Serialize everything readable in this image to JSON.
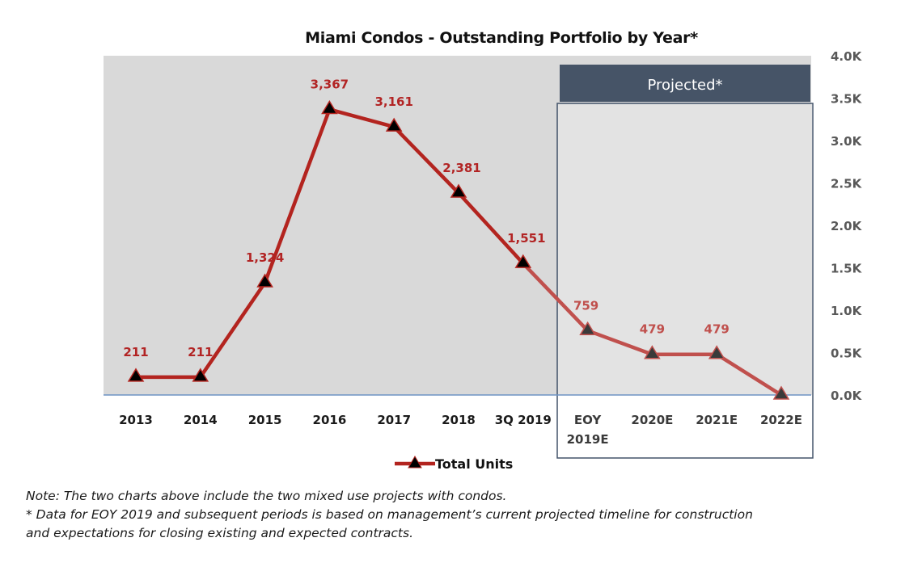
{
  "chart_data": {
    "type": "line",
    "title": "Miami Condos - Outstanding Portfolio by Year*",
    "xlabel": "",
    "ylabel": "",
    "categories": [
      "2013",
      "2014",
      "2015",
      "2016",
      "2017",
      "2018",
      "3Q 2019",
      "EOY 2019E",
      "2020E",
      "2021E",
      "2022E"
    ],
    "category_lines": [
      [
        "2013"
      ],
      [
        "2014"
      ],
      [
        "2015"
      ],
      [
        "2016"
      ],
      [
        "2017"
      ],
      [
        "2018"
      ],
      [
        "3Q 2019"
      ],
      [
        "EOY",
        "2019E"
      ],
      [
        "2020E"
      ],
      [
        "2021E"
      ],
      [
        "2022E"
      ]
    ],
    "series": [
      {
        "name": "Total Units",
        "values": [
          211,
          211,
          1324,
          3367,
          3161,
          2381,
          1551,
          759,
          479,
          479,
          0
        ],
        "data_labels": [
          "211",
          "211",
          "1,324",
          "3,367",
          "3,161",
          "2,381",
          "1,551",
          "759",
          "479",
          "479",
          ""
        ],
        "color": "#b3241f",
        "marker": "triangle"
      }
    ],
    "ylim": [
      0,
      4000
    ],
    "y_ticks": [
      0,
      500,
      1000,
      1500,
      2000,
      2500,
      3000,
      3500,
      4000
    ],
    "y_tick_labels": [
      "0.0K",
      "0.5K",
      "1.0K",
      "1.5K",
      "2.0K",
      "2.5K",
      "3.0K",
      "3.5K",
      "4.0K"
    ],
    "y_axis_side": "right",
    "grid": false,
    "legend": {
      "position": "bottom",
      "entries": [
        "Total Units"
      ]
    },
    "projected_region": {
      "label": "Projected*",
      "from_category": "EOY 2019E",
      "to_category": "2022E"
    }
  },
  "colors": {
    "plot_background": "#d9d9d9",
    "projected_background": "#e3e3e3",
    "projected_header": "#465467",
    "projected_border": "#44546a",
    "line": "#b3241f",
    "projected_line": "#c0504d",
    "baseline": "#6e93c4"
  },
  "notes": [
    "Note: The two charts above include the two mixed use projects with condos.",
    "* Data for EOY 2019 and subsequent periods is based on management’s current projected timeline for construction",
    "and expectations for closing existing and expected contracts."
  ]
}
